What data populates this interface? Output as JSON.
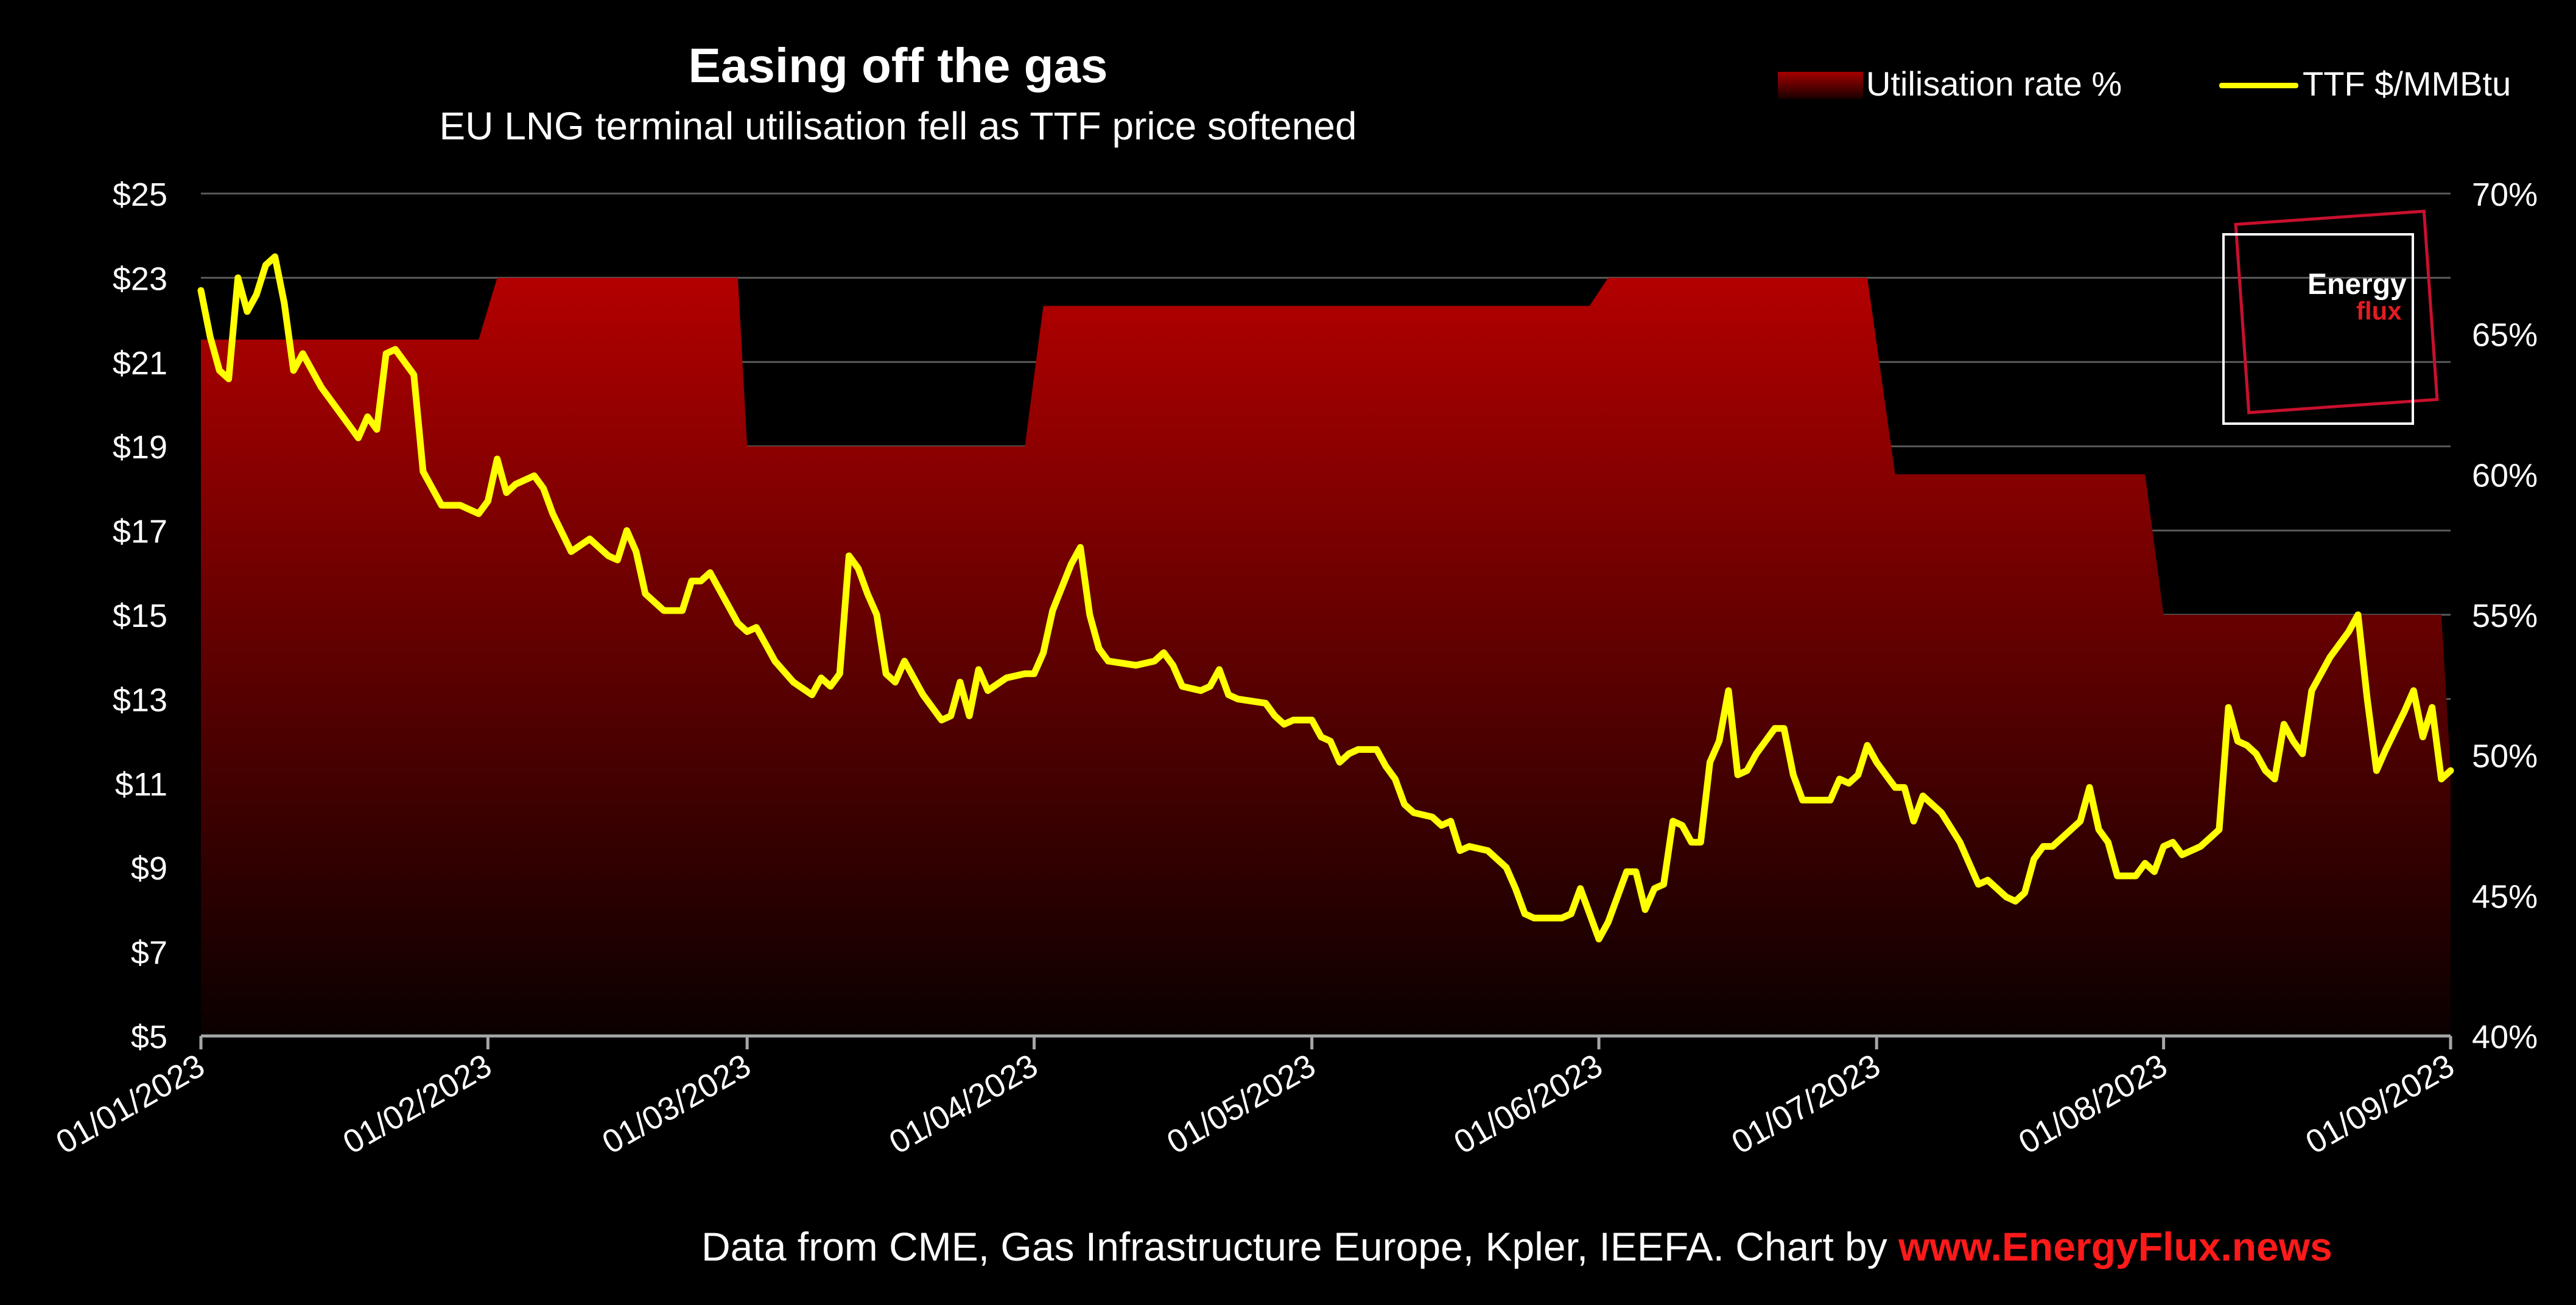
{
  "header": {
    "title": "Easing off the gas",
    "subtitle": "EU LNG terminal utilisation fell as TTF price softened"
  },
  "legend": {
    "area_label": "Utilisation rate %",
    "line_label": "TTF $/MMBtu"
  },
  "logo": {
    "line1": "Energy",
    "line2": "flux"
  },
  "source": {
    "text": "Data from CME, Gas Infrastructure Europe, Kpler, IEEFA. Chart by ",
    "link": "www.EnergyFlux.news"
  },
  "colors": {
    "price_line": "#ffff00",
    "area_top": "#b30000",
    "area_bottom": "#0a0000",
    "link": "#ff1a1a"
  },
  "chart_data": {
    "type": "line",
    "title": "Easing off the gas",
    "subtitle": "EU LNG terminal utilisation fell as TTF price softened",
    "x_start": "01/01/2023",
    "x_end": "01/09/2023",
    "x_ticks": [
      "01/01/2023",
      "01/02/2023",
      "01/03/2023",
      "01/04/2023",
      "01/05/2023",
      "01/06/2023",
      "01/07/2023",
      "01/08/2023",
      "01/09/2023"
    ],
    "y_left": {
      "ticks": [
        "$5",
        "$7",
        "$9",
        "$11",
        "$13",
        "$15",
        "$17",
        "$19",
        "$21",
        "$23",
        "$25"
      ],
      "ylim": [
        5,
        25
      ]
    },
    "y_right": {
      "ticks": [
        "40%",
        "45%",
        "50%",
        "55%",
        "60%",
        "65%",
        "70%"
      ],
      "ylim": [
        40,
        70
      ]
    },
    "grid": true,
    "legend_position": "top-right",
    "series": [
      {
        "name": "Utilisation rate %",
        "type": "area",
        "axis": "right",
        "points": [
          [
            "01/01/2023",
            64.8
          ],
          [
            "31/01/2023",
            64.8
          ],
          [
            "02/02/2023",
            67.0
          ],
          [
            "28/02/2023",
            67.0
          ],
          [
            "01/03/2023",
            61.0
          ],
          [
            "31/03/2023",
            61.0
          ],
          [
            "02/04/2023",
            66.0
          ],
          [
            "31/05/2023",
            66.0
          ],
          [
            "02/06/2023",
            67.0
          ],
          [
            "30/06/2023",
            67.0
          ],
          [
            "03/07/2023",
            60.0
          ],
          [
            "30/07/2023",
            60.0
          ],
          [
            "01/08/2023",
            55.0
          ],
          [
            "31/08/2023",
            55.0
          ],
          [
            "01/09/2023",
            49.5
          ]
        ]
      },
      {
        "name": "TTF $/MMBtu",
        "type": "line",
        "axis": "left",
        "points": [
          [
            "01/01/2023",
            22.7
          ],
          [
            "02/01/2023",
            21.6
          ],
          [
            "03/01/2023",
            20.8
          ],
          [
            "04/01/2023",
            20.6
          ],
          [
            "05/01/2023",
            23.0
          ],
          [
            "06/01/2023",
            22.2
          ],
          [
            "07/01/2023",
            22.6
          ],
          [
            "08/01/2023",
            23.3
          ],
          [
            "09/01/2023",
            23.5
          ],
          [
            "10/01/2023",
            22.4
          ],
          [
            "11/01/2023",
            20.8
          ],
          [
            "12/01/2023",
            21.2
          ],
          [
            "14/01/2023",
            20.4
          ],
          [
            "16/01/2023",
            19.8
          ],
          [
            "18/01/2023",
            19.2
          ],
          [
            "19/01/2023",
            19.7
          ],
          [
            "20/01/2023",
            19.4
          ],
          [
            "21/01/2023",
            21.2
          ],
          [
            "22/01/2023",
            21.3
          ],
          [
            "24/01/2023",
            20.7
          ],
          [
            "25/01/2023",
            18.4
          ],
          [
            "27/01/2023",
            17.6
          ],
          [
            "29/01/2023",
            17.6
          ],
          [
            "31/01/2023",
            17.4
          ],
          [
            "01/02/2023",
            17.7
          ],
          [
            "02/02/2023",
            18.7
          ],
          [
            "03/02/2023",
            17.9
          ],
          [
            "04/02/2023",
            18.1
          ],
          [
            "06/02/2023",
            18.3
          ],
          [
            "07/02/2023",
            18.0
          ],
          [
            "08/02/2023",
            17.4
          ],
          [
            "10/02/2023",
            16.5
          ],
          [
            "12/02/2023",
            16.8
          ],
          [
            "14/02/2023",
            16.4
          ],
          [
            "15/02/2023",
            16.3
          ],
          [
            "16/02/2023",
            17.0
          ],
          [
            "17/02/2023",
            16.5
          ],
          [
            "18/02/2023",
            15.5
          ],
          [
            "20/02/2023",
            15.1
          ],
          [
            "22/02/2023",
            15.1
          ],
          [
            "23/02/2023",
            15.8
          ],
          [
            "24/02/2023",
            15.8
          ],
          [
            "25/02/2023",
            16.0
          ],
          [
            "26/02/2023",
            15.6
          ],
          [
            "28/02/2023",
            14.8
          ],
          [
            "01/03/2023",
            14.6
          ],
          [
            "02/03/2023",
            14.7
          ],
          [
            "03/03/2023",
            14.3
          ],
          [
            "04/03/2023",
            13.9
          ],
          [
            "06/03/2023",
            13.4
          ],
          [
            "08/03/2023",
            13.1
          ],
          [
            "09/03/2023",
            13.5
          ],
          [
            "10/03/2023",
            13.3
          ],
          [
            "11/03/2023",
            13.6
          ],
          [
            "12/03/2023",
            16.4
          ],
          [
            "13/03/2023",
            16.1
          ],
          [
            "14/03/2023",
            15.5
          ],
          [
            "15/03/2023",
            15.0
          ],
          [
            "16/03/2023",
            13.6
          ],
          [
            "17/03/2023",
            13.4
          ],
          [
            "18/03/2023",
            13.9
          ],
          [
            "20/03/2023",
            13.1
          ],
          [
            "22/03/2023",
            12.5
          ],
          [
            "23/03/2023",
            12.6
          ],
          [
            "24/03/2023",
            13.4
          ],
          [
            "25/03/2023",
            12.6
          ],
          [
            "26/03/2023",
            13.7
          ],
          [
            "27/03/2023",
            13.2
          ],
          [
            "29/03/2023",
            13.5
          ],
          [
            "31/03/2023",
            13.6
          ],
          [
            "01/04/2023",
            13.6
          ],
          [
            "02/04/2023",
            14.1
          ],
          [
            "03/04/2023",
            15.1
          ],
          [
            "05/04/2023",
            16.2
          ],
          [
            "06/04/2023",
            16.6
          ],
          [
            "07/04/2023",
            15.0
          ],
          [
            "08/04/2023",
            14.2
          ],
          [
            "09/04/2023",
            13.9
          ],
          [
            "12/04/2023",
            13.8
          ],
          [
            "14/04/2023",
            13.9
          ],
          [
            "15/04/2023",
            14.1
          ],
          [
            "16/04/2023",
            13.8
          ],
          [
            "17/04/2023",
            13.3
          ],
          [
            "19/04/2023",
            13.2
          ],
          [
            "20/04/2023",
            13.3
          ],
          [
            "21/04/2023",
            13.7
          ],
          [
            "22/04/2023",
            13.1
          ],
          [
            "23/04/2023",
            13.0
          ],
          [
            "26/04/2023",
            12.9
          ],
          [
            "27/04/2023",
            12.6
          ],
          [
            "28/04/2023",
            12.4
          ],
          [
            "29/04/2023",
            12.5
          ],
          [
            "30/04/2023",
            12.5
          ],
          [
            "01/05/2023",
            12.5
          ],
          [
            "02/05/2023",
            12.1
          ],
          [
            "03/05/2023",
            12.0
          ],
          [
            "04/05/2023",
            11.5
          ],
          [
            "05/05/2023",
            11.7
          ],
          [
            "06/05/2023",
            11.8
          ],
          [
            "08/05/2023",
            11.8
          ],
          [
            "09/05/2023",
            11.4
          ],
          [
            "10/05/2023",
            11.1
          ],
          [
            "11/05/2023",
            10.5
          ],
          [
            "12/05/2023",
            10.3
          ],
          [
            "14/05/2023",
            10.2
          ],
          [
            "15/05/2023",
            10.0
          ],
          [
            "16/05/2023",
            10.1
          ],
          [
            "17/05/2023",
            9.4
          ],
          [
            "18/05/2023",
            9.5
          ],
          [
            "20/05/2023",
            9.4
          ],
          [
            "22/05/2023",
            9.0
          ],
          [
            "23/05/2023",
            8.5
          ],
          [
            "24/05/2023",
            7.9
          ],
          [
            "25/05/2023",
            7.8
          ],
          [
            "28/05/2023",
            7.8
          ],
          [
            "29/05/2023",
            7.9
          ],
          [
            "30/05/2023",
            8.5
          ],
          [
            "31/05/2023",
            7.9
          ],
          [
            "01/06/2023",
            7.3
          ],
          [
            "02/06/2023",
            7.7
          ],
          [
            "03/06/2023",
            8.3
          ],
          [
            "04/06/2023",
            8.9
          ],
          [
            "05/06/2023",
            8.9
          ],
          [
            "06/06/2023",
            8.0
          ],
          [
            "07/06/2023",
            8.5
          ],
          [
            "08/06/2023",
            8.6
          ],
          [
            "09/06/2023",
            10.1
          ],
          [
            "10/06/2023",
            10.0
          ],
          [
            "11/06/2023",
            9.6
          ],
          [
            "12/06/2023",
            9.6
          ],
          [
            "13/06/2023",
            11.5
          ],
          [
            "14/06/2023",
            12.0
          ],
          [
            "15/06/2023",
            13.2
          ],
          [
            "16/06/2023",
            11.2
          ],
          [
            "17/06/2023",
            11.3
          ],
          [
            "18/06/2023",
            11.7
          ],
          [
            "20/06/2023",
            12.3
          ],
          [
            "21/06/2023",
            12.3
          ],
          [
            "22/06/2023",
            11.2
          ],
          [
            "23/06/2023",
            10.6
          ],
          [
            "25/06/2023",
            10.6
          ],
          [
            "26/06/2023",
            10.6
          ],
          [
            "27/06/2023",
            11.1
          ],
          [
            "28/06/2023",
            11.0
          ],
          [
            "29/06/2023",
            11.2
          ],
          [
            "30/06/2023",
            11.9
          ],
          [
            "01/07/2023",
            11.5
          ],
          [
            "02/07/2023",
            11.2
          ],
          [
            "03/07/2023",
            10.9
          ],
          [
            "04/07/2023",
            10.9
          ],
          [
            "05/07/2023",
            10.1
          ],
          [
            "06/07/2023",
            10.7
          ],
          [
            "08/07/2023",
            10.3
          ],
          [
            "10/07/2023",
            9.6
          ],
          [
            "12/07/2023",
            8.6
          ],
          [
            "13/07/2023",
            8.7
          ],
          [
            "15/07/2023",
            8.3
          ],
          [
            "16/07/2023",
            8.2
          ],
          [
            "17/07/2023",
            8.4
          ],
          [
            "18/07/2023",
            9.2
          ],
          [
            "19/07/2023",
            9.5
          ],
          [
            "20/07/2023",
            9.5
          ],
          [
            "21/07/2023",
            9.7
          ],
          [
            "23/07/2023",
            10.1
          ],
          [
            "24/07/2023",
            10.9
          ],
          [
            "25/07/2023",
            9.9
          ],
          [
            "26/07/2023",
            9.6
          ],
          [
            "27/07/2023",
            8.8
          ],
          [
            "28/07/2023",
            8.8
          ],
          [
            "29/07/2023",
            8.8
          ],
          [
            "30/07/2023",
            9.1
          ],
          [
            "31/07/2023",
            8.9
          ],
          [
            "01/08/2023",
            9.5
          ],
          [
            "02/08/2023",
            9.6
          ],
          [
            "03/08/2023",
            9.3
          ],
          [
            "05/08/2023",
            9.5
          ],
          [
            "06/08/2023",
            9.7
          ],
          [
            "07/08/2023",
            9.9
          ],
          [
            "08/08/2023",
            12.8
          ],
          [
            "09/08/2023",
            12.0
          ],
          [
            "10/08/2023",
            11.9
          ],
          [
            "11/08/2023",
            11.7
          ],
          [
            "12/08/2023",
            11.3
          ],
          [
            "13/08/2023",
            11.1
          ],
          [
            "14/08/2023",
            12.4
          ],
          [
            "15/08/2023",
            12.0
          ],
          [
            "16/08/2023",
            11.7
          ],
          [
            "17/08/2023",
            13.2
          ],
          [
            "19/08/2023",
            14.0
          ],
          [
            "21/08/2023",
            14.6
          ],
          [
            "22/08/2023",
            15.0
          ],
          [
            "23/08/2023",
            13.0
          ],
          [
            "24/08/2023",
            11.3
          ],
          [
            "25/08/2023",
            11.8
          ],
          [
            "27/08/2023",
            12.7
          ],
          [
            "28/08/2023",
            13.2
          ],
          [
            "29/08/2023",
            12.1
          ],
          [
            "30/08/2023",
            12.8
          ],
          [
            "31/08/2023",
            11.1
          ],
          [
            "01/09/2023",
            11.3
          ]
        ]
      }
    ]
  }
}
